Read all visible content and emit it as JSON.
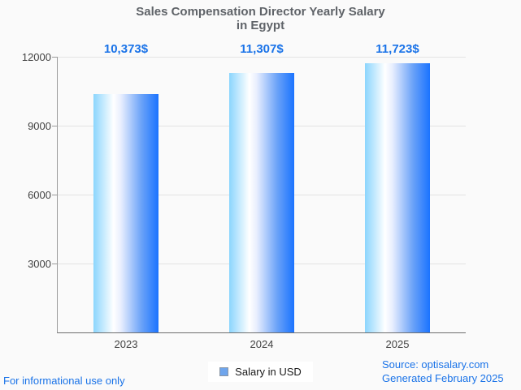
{
  "header": {
    "title_line1": "Sales Compensation Director Yearly Salary",
    "title_line2": "in Egypt"
  },
  "chart_data": {
    "type": "bar",
    "title": "Sales Compensation Director Yearly Salary in Egypt",
    "categories": [
      "2023",
      "2024",
      "2025"
    ],
    "values": [
      10373,
      11307,
      11723
    ],
    "value_labels": [
      "10,373$",
      "11,307$",
      "11,723$"
    ],
    "series": [
      {
        "name": "Salary in USD",
        "values": [
          10373,
          11307,
          11723
        ]
      }
    ],
    "ylabel": "",
    "xlabel": "",
    "ylim": [
      0,
      12000
    ],
    "yticks": [
      3000,
      6000,
      9000,
      12000
    ],
    "grid": true,
    "legend_position": "bottom",
    "bar_gradient": [
      "#8bd5fd",
      "#ffffff",
      "#1a73ff"
    ],
    "annotation_color": "#1a73e8"
  },
  "legend": {
    "label": "Salary in USD"
  },
  "footer": {
    "disclaimer": "For informational use only",
    "source": "Source: optisalary.com",
    "generated": "Generated February 2025"
  }
}
